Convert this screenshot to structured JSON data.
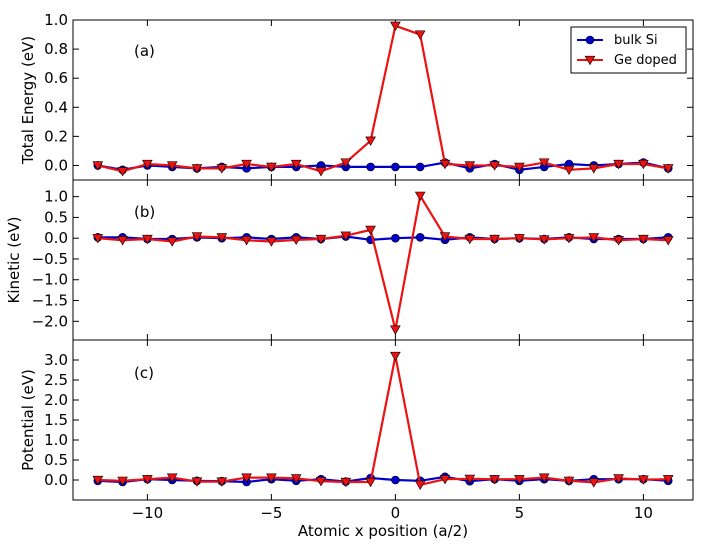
{
  "chart_data": {
    "type": "line",
    "layout": "3 vertically stacked panels sharing the x axis",
    "x": [
      -12,
      -11,
      -10,
      -9,
      -8,
      -7,
      -6,
      -5,
      -4,
      -3,
      -2,
      -1,
      0,
      1,
      2,
      3,
      4,
      5,
      6,
      7,
      8,
      9,
      10,
      11
    ],
    "xlabel": "Atomic x position (a/2)",
    "xlim": [
      -13,
      12
    ],
    "xticks": [
      -10,
      -5,
      0,
      5,
      10
    ],
    "xtick_labels": [
      "−10",
      "−5",
      "0",
      "5",
      "10"
    ],
    "legend": {
      "location": "top-right of panel (a)",
      "entries": [
        "bulk Si",
        "Ge doped"
      ]
    },
    "series_style": [
      {
        "name": "bulk Si",
        "color": "#0000cc",
        "marker": "circle"
      },
      {
        "name": "Ge doped",
        "color": "#ee1111",
        "marker": "triangle-down"
      }
    ],
    "panels": [
      {
        "tag": "(a)",
        "ylabel": "Total Energy (eV)",
        "ylim": [
          -0.1,
          1.0
        ],
        "yticks": [
          0.0,
          0.2,
          0.4,
          0.6,
          0.8,
          1.0
        ],
        "ytick_labels": [
          "0.0",
          "0.2",
          "0.4",
          "0.6",
          "0.8",
          "1.0"
        ],
        "series": [
          {
            "name": "bulk Si",
            "values": [
              0.0,
              -0.03,
              0.0,
              -0.01,
              -0.02,
              -0.01,
              -0.02,
              -0.01,
              -0.01,
              0.0,
              -0.01,
              -0.01,
              -0.01,
              -0.01,
              0.02,
              -0.02,
              0.01,
              -0.03,
              -0.01,
              0.01,
              0.0,
              0.01,
              0.02,
              -0.02
            ]
          },
          {
            "name": "Ge doped",
            "values": [
              0.0,
              -0.04,
              0.01,
              0.0,
              -0.02,
              -0.02,
              0.01,
              -0.01,
              0.01,
              -0.04,
              0.02,
              0.17,
              0.96,
              0.9,
              0.01,
              0.0,
              0.0,
              -0.01,
              0.02,
              -0.03,
              -0.02,
              0.01,
              0.01,
              -0.02
            ]
          }
        ]
      },
      {
        "tag": "(b)",
        "ylabel": "Kinetic (eV)",
        "ylim": [
          -2.45,
          1.4
        ],
        "yticks": [
          -2.0,
          -1.5,
          -1.0,
          -0.5,
          0.0,
          0.5,
          1.0
        ],
        "ytick_labels": [
          "−2.0",
          "−1.5",
          "−1.0",
          "−0.5",
          "0.0",
          "0.5",
          "1.0"
        ],
        "series": [
          {
            "name": "bulk Si",
            "values": [
              0.02,
              0.02,
              -0.02,
              -0.02,
              0.02,
              0.0,
              0.02,
              -0.02,
              0.02,
              -0.02,
              0.04,
              -0.04,
              0.0,
              0.02,
              -0.04,
              0.02,
              -0.02,
              0.0,
              -0.02,
              0.02,
              -0.02,
              -0.02,
              -0.02,
              0.02
            ]
          },
          {
            "name": "Ge doped",
            "values": [
              0.0,
              -0.05,
              -0.02,
              -0.08,
              0.04,
              0.02,
              -0.05,
              -0.08,
              -0.04,
              -0.02,
              0.06,
              0.2,
              -2.2,
              1.02,
              0.04,
              -0.02,
              -0.02,
              0.0,
              -0.03,
              0.0,
              0.02,
              -0.05,
              -0.02,
              -0.05
            ]
          }
        ]
      },
      {
        "tag": "(c)",
        "ylabel": "Potential (eV)",
        "ylim": [
          -0.5,
          3.5
        ],
        "yticks": [
          0.0,
          0.5,
          1.0,
          1.5,
          2.0,
          2.5,
          3.0
        ],
        "ytick_labels": [
          "0.0",
          "0.5",
          "1.0",
          "1.5",
          "2.0",
          "2.5",
          "3.0"
        ],
        "series": [
          {
            "name": "bulk Si",
            "values": [
              -0.02,
              -0.05,
              0.02,
              0.0,
              -0.02,
              -0.03,
              -0.05,
              0.02,
              -0.02,
              0.02,
              -0.04,
              0.05,
              0.0,
              -0.02,
              0.08,
              -0.03,
              0.02,
              -0.02,
              0.02,
              -0.02,
              0.02,
              0.02,
              0.02,
              -0.02
            ]
          },
          {
            "name": "Ge doped",
            "values": [
              0.0,
              -0.02,
              0.02,
              0.06,
              -0.04,
              -0.04,
              0.06,
              0.06,
              0.04,
              -0.03,
              -0.05,
              -0.05,
              3.1,
              -0.12,
              0.02,
              0.03,
              0.02,
              0.02,
              0.06,
              -0.02,
              -0.06,
              0.04,
              0.01,
              0.02
            ]
          }
        ]
      }
    ]
  }
}
